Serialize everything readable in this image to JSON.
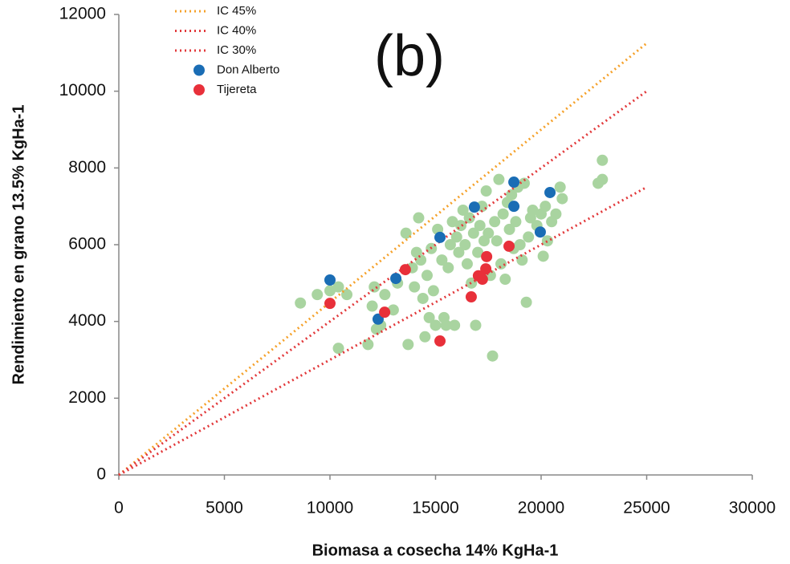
{
  "chart_data": {
    "type": "scatter",
    "annotation": "(b)",
    "x_label": "Biomasa a cosecha 14% KgHa-1",
    "y_label": "Rendimiento en grano 13.5% KgHa-1",
    "xlim": [
      0,
      30000
    ],
    "xticks": [
      0,
      5000,
      10000,
      15000,
      20000,
      25000,
      30000
    ],
    "ylim": [
      0,
      12000
    ],
    "yticks": [
      0,
      2000,
      4000,
      6000,
      8000,
      10000,
      12000
    ],
    "grid": false,
    "legend": "top-left",
    "series": [
      {
        "name": "IC 45%",
        "type": "line",
        "dash": "dotted",
        "color": "#f5a12a",
        "x": [
          0,
          25000
        ],
        "values": [
          0,
          11250
        ]
      },
      {
        "name": "IC 40%",
        "type": "line",
        "dash": "dotted",
        "color": "#e2393b",
        "x": [
          0,
          25000
        ],
        "values": [
          0,
          10000
        ]
      },
      {
        "name": "IC 30%",
        "type": "line",
        "dash": "dotted",
        "color": "#e2393b",
        "x": [
          0,
          25000
        ],
        "values": [
          0,
          7500
        ]
      },
      {
        "name": "Don Alberto",
        "type": "scatter",
        "color": "#1a6db5",
        "x": [
          10000,
          13120,
          12280,
          15210,
          16840,
          18710,
          18710,
          20420,
          19960
        ],
        "values": [
          5080,
          5120,
          4060,
          6190,
          6980,
          7630,
          7000,
          7360,
          6330
        ]
      },
      {
        "name": "Tijereta",
        "type": "scatter",
        "color": "#e8303a",
        "x": [
          10000,
          12590,
          13570,
          15210,
          16690,
          17030,
          17220,
          17380,
          17420,
          18480
        ],
        "values": [
          4470,
          4240,
          5350,
          3490,
          4640,
          5190,
          5100,
          5370,
          5690,
          5960
        ]
      },
      {
        "type": "scatter",
        "color": "#a9d4a0",
        "x": [
          8600,
          9400,
          10000,
          10400,
          10800,
          10400,
          11800,
          12000,
          12100,
          12200,
          12400,
          12600,
          13000,
          13200,
          13600,
          13700,
          13900,
          14000,
          14100,
          14200,
          14300,
          14400,
          14500,
          14600,
          14700,
          14800,
          14900,
          15000,
          15100,
          15300,
          15400,
          15500,
          15600,
          15700,
          15800,
          15900,
          16000,
          16100,
          16200,
          16300,
          16400,
          16500,
          16600,
          16700,
          16800,
          16900,
          17000,
          17100,
          17200,
          17300,
          17400,
          17500,
          17600,
          17700,
          17800,
          17900,
          18000,
          18100,
          18200,
          18300,
          18400,
          18500,
          18600,
          18700,
          18800,
          18900,
          19000,
          19100,
          19200,
          19300,
          19400,
          19500,
          19600,
          19800,
          20000,
          20100,
          20200,
          20300,
          20500,
          20700,
          20900,
          21000,
          22700,
          22900,
          22900
        ],
        "values": [
          4480,
          4700,
          4800,
          4900,
          4700,
          3300,
          3400,
          4400,
          4900,
          3800,
          3900,
          4700,
          4300,
          5000,
          6300,
          3400,
          5400,
          4900,
          5800,
          6700,
          5600,
          4600,
          3600,
          5200,
          4100,
          5900,
          4800,
          3900,
          6400,
          5600,
          4100,
          3900,
          5400,
          6000,
          6600,
          3900,
          6200,
          5800,
          6500,
          6900,
          6000,
          5500,
          6700,
          5000,
          6300,
          3900,
          5800,
          6500,
          7000,
          6100,
          7400,
          6300,
          5200,
          3100,
          6600,
          6100,
          7700,
          5500,
          6800,
          5100,
          7100,
          6400,
          7300,
          5900,
          6600,
          7500,
          6000,
          5600,
          7600,
          4500,
          6200,
          6700,
          6900,
          6500,
          6800,
          5700,
          7000,
          6100,
          6600,
          6800,
          7500,
          7200,
          7600,
          7700,
          8200
        ]
      }
    ]
  }
}
